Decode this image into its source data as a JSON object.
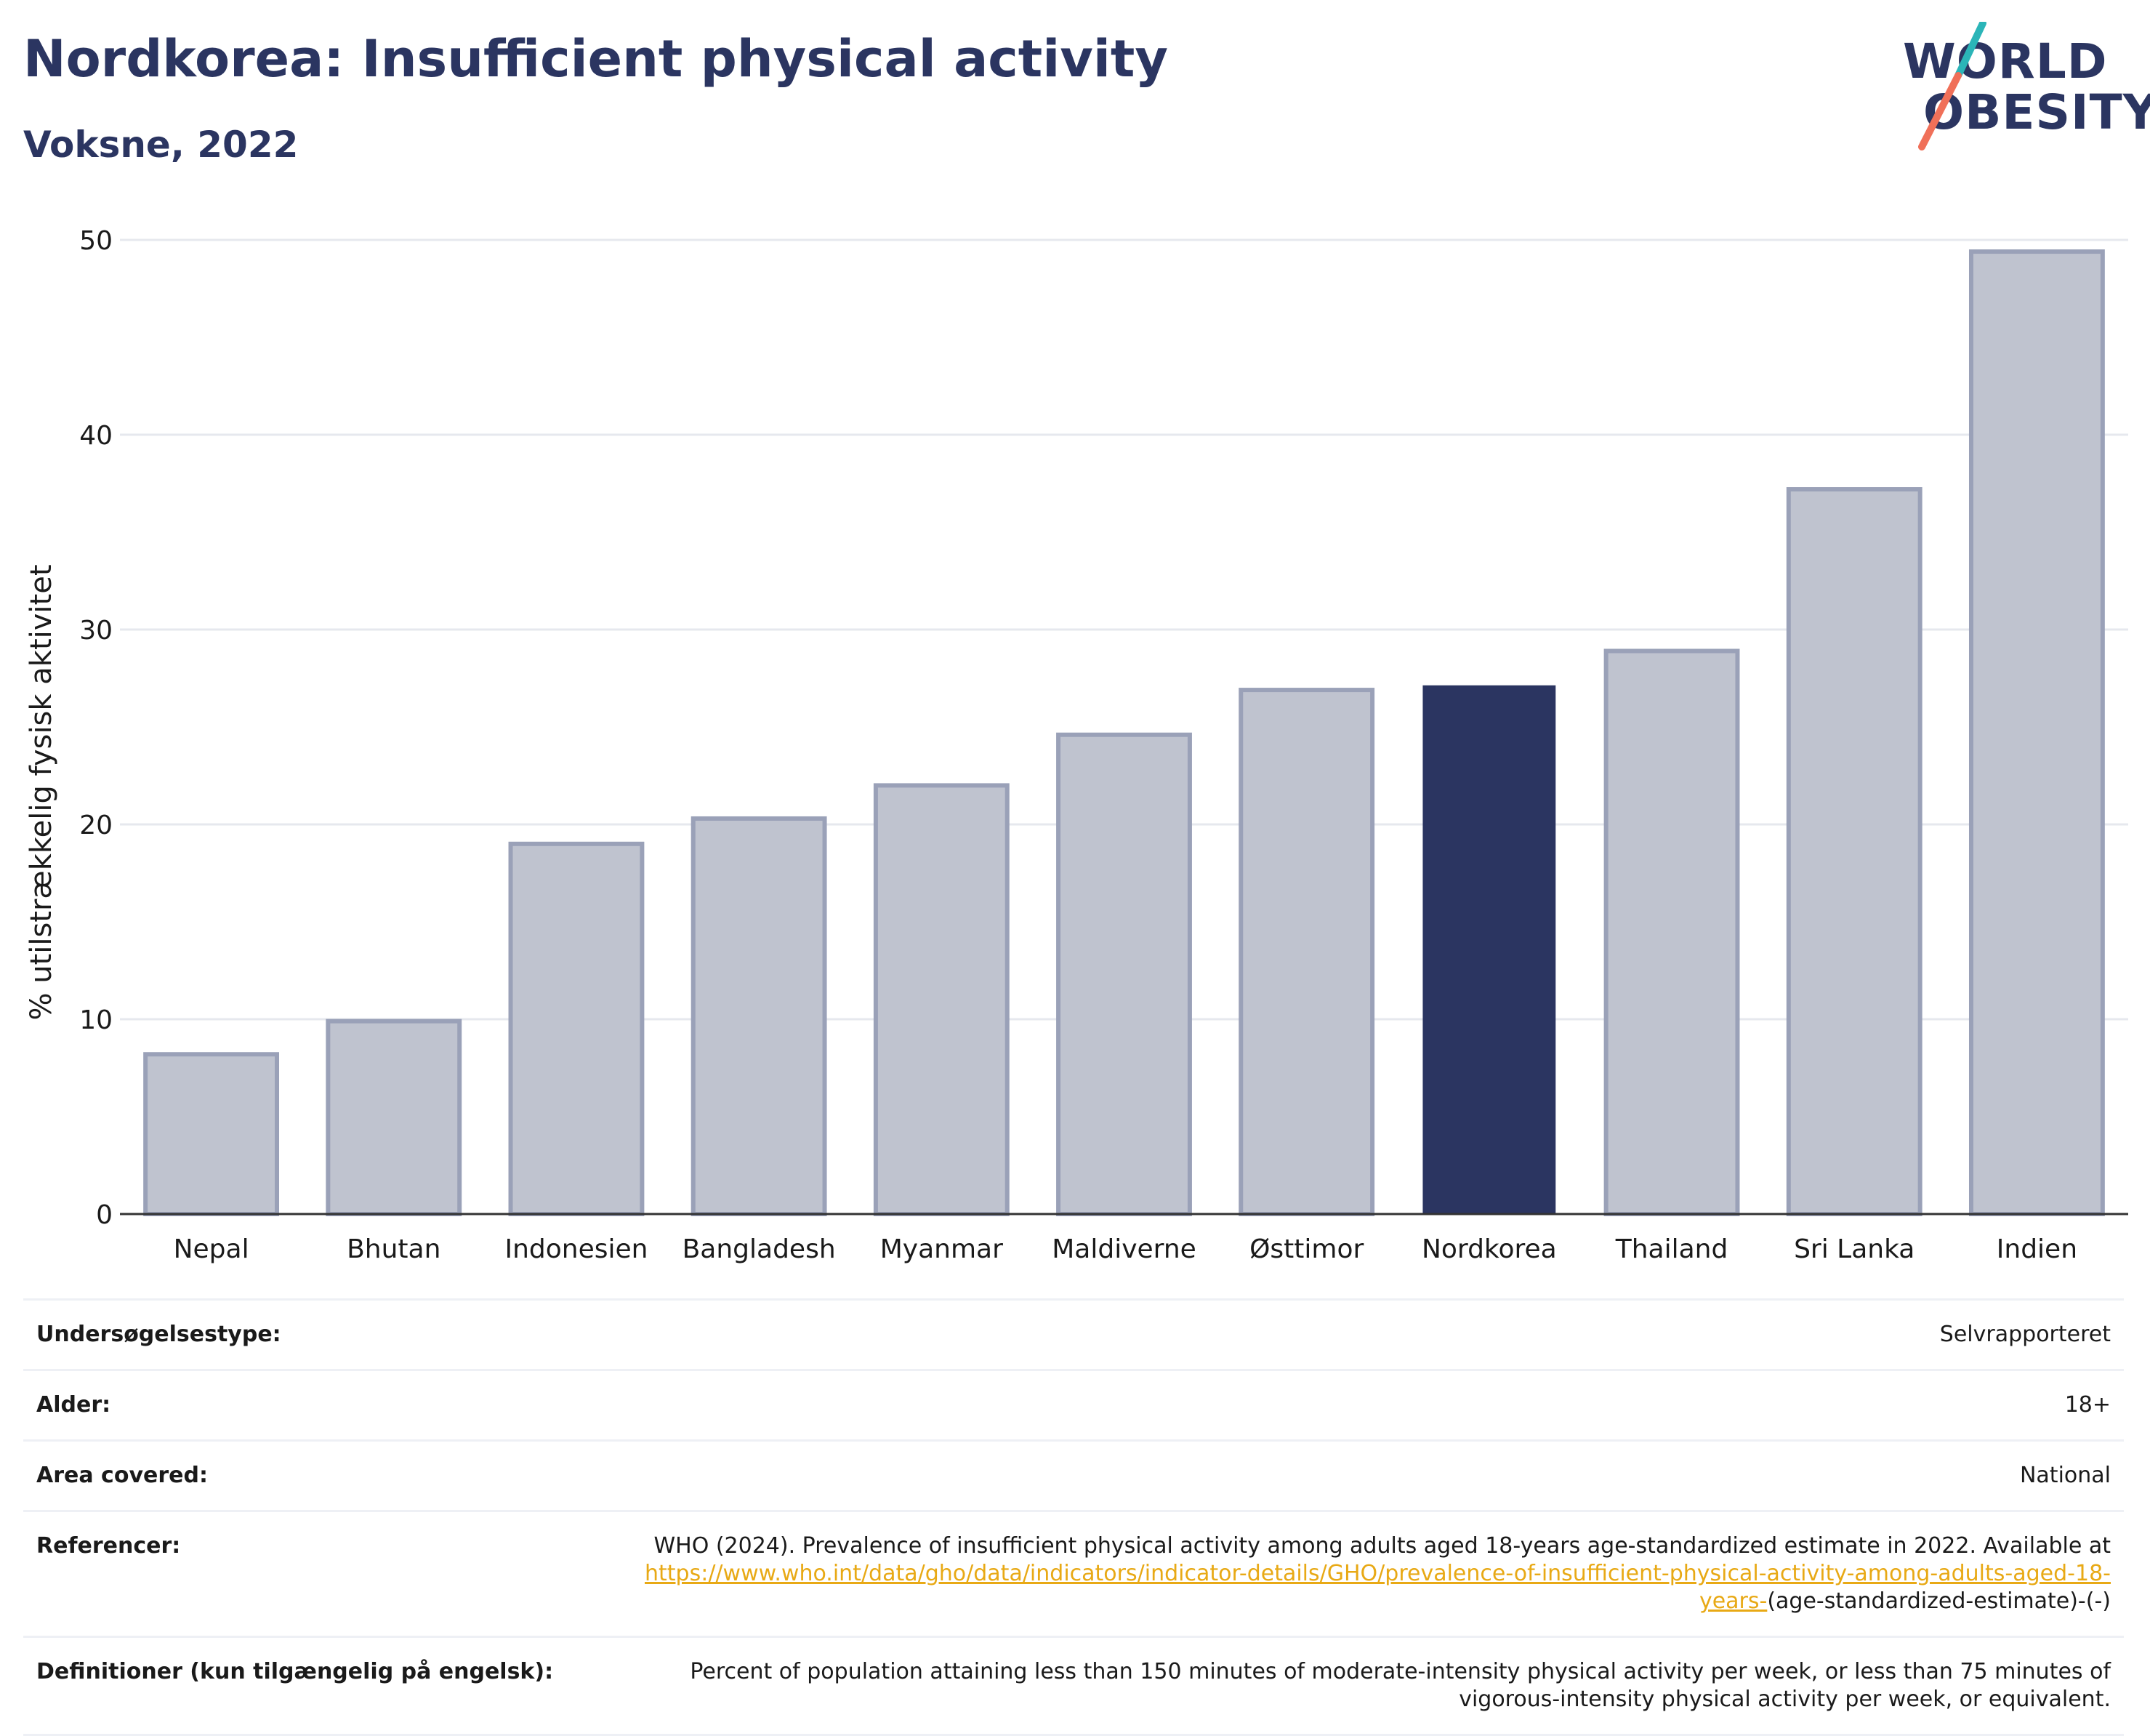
{
  "header": {
    "title": "Nordkorea: Insufficient physical activity",
    "subtitle": "Voksne, 2022"
  },
  "logo": {
    "line1": "WORLD",
    "line2": "OBESITY"
  },
  "colors": {
    "highlight": "#2b3561",
    "bar_fill": "#bfc3cf",
    "bar_stroke": "#9aa1b8",
    "grid": "#e6e8ee",
    "link": "#e8a915",
    "logo_teal": "#2bb5b8",
    "logo_coral": "#f07059"
  },
  "chart_data": {
    "type": "bar",
    "ylabel": "% utilstrækkelig fysisk aktivitet",
    "xlabel": "",
    "ylim": [
      0,
      50
    ],
    "yticks": [
      0,
      10,
      20,
      30,
      40,
      50
    ],
    "grid": true,
    "categories": [
      "Nepal",
      "Bhutan",
      "Indonesien",
      "Bangladesh",
      "Myanmar",
      "Maldiverne",
      "Østtimor",
      "Nordkorea",
      "Thailand",
      "Sri Lanka",
      "Indien"
    ],
    "values": [
      8.2,
      9.9,
      19.0,
      20.3,
      22.0,
      24.6,
      26.9,
      27.1,
      28.9,
      37.2,
      49.4
    ],
    "highlight": "Nordkorea"
  },
  "meta": {
    "survey_type": {
      "label": "Undersøgelsestype:",
      "value": "Selvrapporteret"
    },
    "age": {
      "label": "Alder:",
      "value": "18+"
    },
    "area": {
      "label": "Area covered:",
      "value": "National"
    },
    "references": {
      "label": "Referencer:",
      "text": "WHO (2024). Prevalence of insufficient physical activity among adults aged 18-years age-standardized estimate in 2022. Available at ",
      "link": "https://www.who.int/data/gho/data/indicators/indicator-details/GHO/prevalence-of-insufficient-physical-activity-among-adults-aged-18-years-",
      "suffix": "(age-standardized-estimate)-(-)"
    },
    "definitions": {
      "label": "Definitioner (kun tilgængelig på engelsk):",
      "value": "Percent of population attaining less than 150 minutes of moderate-intensity physical activity per week, or less than 75 minutes of vigorous-intensity physical activity per week, or equivalent."
    }
  }
}
